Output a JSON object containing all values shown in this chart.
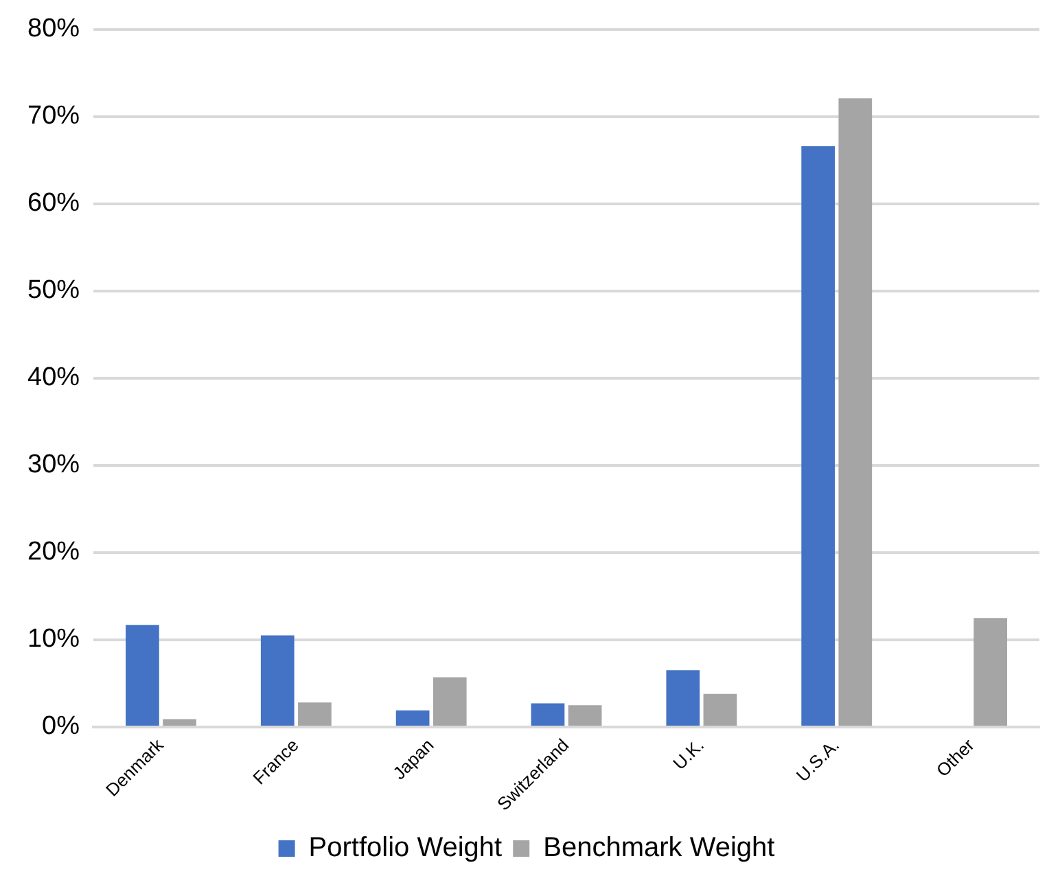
{
  "chart_data": {
    "type": "bar",
    "categories": [
      "Denmark",
      "France",
      "Japan",
      "Switzerland",
      "U.K.",
      "U.S.A.",
      "Other"
    ],
    "series": [
      {
        "name": "Portfolio Weight",
        "color": "#4472c4",
        "values": [
          11.7,
          10.5,
          1.9,
          2.7,
          6.5,
          66.6,
          null
        ]
      },
      {
        "name": "Benchmark Weight",
        "color": "#a5a5a5",
        "values": [
          0.9,
          2.8,
          5.7,
          2.5,
          3.8,
          72.1,
          12.5
        ]
      }
    ],
    "ylim": [
      0,
      80
    ],
    "yticks": [
      {
        "value": 0,
        "label": "0%"
      },
      {
        "value": 10,
        "label": "10%"
      },
      {
        "value": 20,
        "label": "20%"
      },
      {
        "value": 30,
        "label": "30%"
      },
      {
        "value": 40,
        "label": "40%"
      },
      {
        "value": 50,
        "label": "50%"
      },
      {
        "value": 60,
        "label": "60%"
      },
      {
        "value": 70,
        "label": "70%"
      },
      {
        "value": 80,
        "label": "80%"
      }
    ],
    "grid": "y",
    "legend": "bottom"
  }
}
